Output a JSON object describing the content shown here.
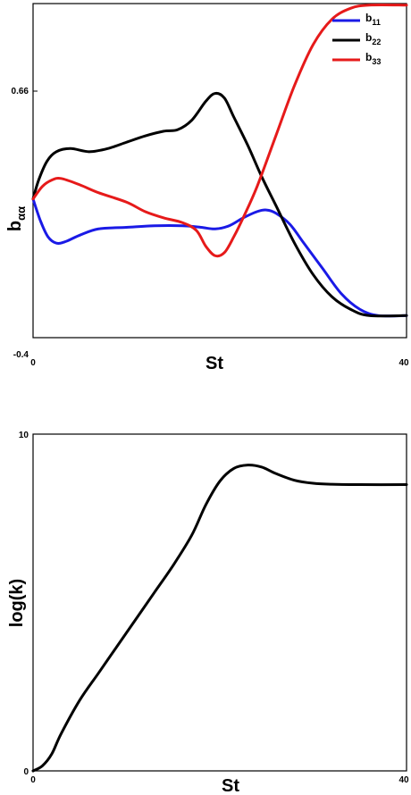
{
  "chart_data": [
    {
      "type": "line",
      "xlabel": "St",
      "ylabel_main": "b",
      "ylabel_sub": "αα",
      "xlim": [
        0,
        40
      ],
      "ylim": [
        -0.4,
        0.66
      ],
      "x_tick_labels": [
        "0",
        "40"
      ],
      "y_tick_labels": [
        "-0.4",
        "0.66"
      ],
      "grid": false,
      "legend_position": "top-right",
      "series": [
        {
          "name": "b11",
          "label_main": "b",
          "label_sub": "11",
          "color": "#1a1ae6",
          "points": [
            [
              0,
              0.04
            ],
            [
              0.8,
              -0.03
            ],
            [
              1.6,
              -0.08
            ],
            [
              2.5,
              -0.1
            ],
            [
              3.5,
              -0.095
            ],
            [
              5,
              -0.075
            ],
            [
              7,
              -0.055
            ],
            [
              10,
              -0.05
            ],
            [
              13,
              -0.045
            ],
            [
              16,
              -0.045
            ],
            [
              18,
              -0.05
            ],
            [
              19.5,
              -0.055
            ],
            [
              21,
              -0.045
            ],
            [
              22.5,
              -0.02
            ],
            [
              24,
              0.0
            ],
            [
              25,
              0.005
            ],
            [
              26,
              -0.005
            ],
            [
              27.5,
              -0.04
            ],
            [
              29,
              -0.1
            ],
            [
              31,
              -0.18
            ],
            [
              33,
              -0.26
            ],
            [
              35,
              -0.31
            ],
            [
              37,
              -0.33
            ],
            [
              40,
              -0.33
            ]
          ]
        },
        {
          "name": "b22",
          "label_main": "b",
          "label_sub": "22",
          "color": "#000000",
          "points": [
            [
              0,
              0.04
            ],
            [
              0.6,
              0.1
            ],
            [
              1.5,
              0.16
            ],
            [
              2.5,
              0.19
            ],
            [
              4,
              0.2
            ],
            [
              6,
              0.19
            ],
            [
              8,
              0.2
            ],
            [
              10,
              0.22
            ],
            [
              12,
              0.24
            ],
            [
              14,
              0.255
            ],
            [
              15.5,
              0.26
            ],
            [
              17,
              0.29
            ],
            [
              18.5,
              0.35
            ],
            [
              19.5,
              0.375
            ],
            [
              20.5,
              0.36
            ],
            [
              21.5,
              0.3
            ],
            [
              23,
              0.21
            ],
            [
              24.5,
              0.11
            ],
            [
              26,
              0.02
            ],
            [
              28,
              -0.1
            ],
            [
              30,
              -0.2
            ],
            [
              32,
              -0.27
            ],
            [
              34,
              -0.31
            ],
            [
              36,
              -0.33
            ],
            [
              40,
              -0.33
            ]
          ]
        },
        {
          "name": "b33",
          "label_main": "b",
          "label_sub": "33",
          "color": "#e61a1a",
          "points": [
            [
              0,
              0.04
            ],
            [
              1,
              0.08
            ],
            [
              2,
              0.1
            ],
            [
              3,
              0.105
            ],
            [
              5,
              0.085
            ],
            [
              7,
              0.06
            ],
            [
              10,
              0.03
            ],
            [
              12,
              0.0
            ],
            [
              14,
              -0.02
            ],
            [
              16,
              -0.035
            ],
            [
              17.5,
              -0.06
            ],
            [
              18.5,
              -0.11
            ],
            [
              19.5,
              -0.14
            ],
            [
              20.5,
              -0.13
            ],
            [
              21.5,
              -0.08
            ],
            [
              22.5,
              -0.02
            ],
            [
              24,
              0.08
            ],
            [
              26,
              0.24
            ],
            [
              28,
              0.4
            ],
            [
              30,
              0.53
            ],
            [
              32,
              0.61
            ],
            [
              34,
              0.645
            ],
            [
              36,
              0.655
            ],
            [
              40,
              0.655
            ]
          ]
        }
      ]
    },
    {
      "type": "line",
      "xlabel": "St",
      "ylabel": "log(k)",
      "xlim": [
        0,
        40
      ],
      "ylim": [
        0,
        10
      ],
      "x_tick_labels": [
        "0",
        "40"
      ],
      "y_tick_labels": [
        "0",
        "10"
      ],
      "grid": false,
      "series": [
        {
          "color": "#000000",
          "points": [
            [
              0,
              0
            ],
            [
              1,
              0.15
            ],
            [
              2,
              0.5
            ],
            [
              3,
              1.1
            ],
            [
              5,
              2.1
            ],
            [
              7,
              2.9
            ],
            [
              9,
              3.7
            ],
            [
              11,
              4.5
            ],
            [
              13,
              5.3
            ],
            [
              15,
              6.1
            ],
            [
              17,
              7.0
            ],
            [
              18.5,
              7.9
            ],
            [
              20,
              8.6
            ],
            [
              21.5,
              8.98
            ],
            [
              23,
              9.08
            ],
            [
              24.5,
              9.02
            ],
            [
              26,
              8.83
            ],
            [
              28,
              8.63
            ],
            [
              30,
              8.54
            ],
            [
              32,
              8.51
            ],
            [
              35,
              8.5
            ],
            [
              40,
              8.5
            ]
          ]
        }
      ]
    }
  ]
}
